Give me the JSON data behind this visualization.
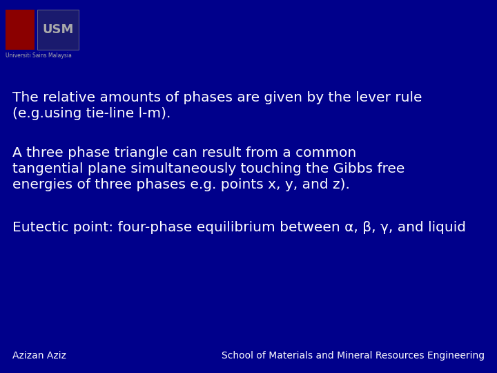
{
  "background_color": "#00008B",
  "text_color": "#FFFFFF",
  "line1": "The relative amounts of phases are given by the lever rule",
  "line2": "(e.g.using tie-line l-m).",
  "line3": "A three phase triangle can result from a common",
  "line4": "tangential plane simultaneously touching the Gibbs free",
  "line5": "energies of three phases e.g. points x, y, and z).",
  "line6": "Eutectic point: four-phase equilibrium between α, β, γ, and liquid",
  "footer_left": "Azizan Aziz",
  "footer_right": "School of Materials and Mineral Resources Engineering",
  "text_fontsize": 14.5,
  "footer_fontsize": 10,
  "logo_subtitle": "Universiti Sains Malaysia",
  "logo1_color": "#8B0000",
  "logo2_color": "#1a1a6e",
  "logo2_text": "USM",
  "logo2_text_color": "#AAAAAA"
}
